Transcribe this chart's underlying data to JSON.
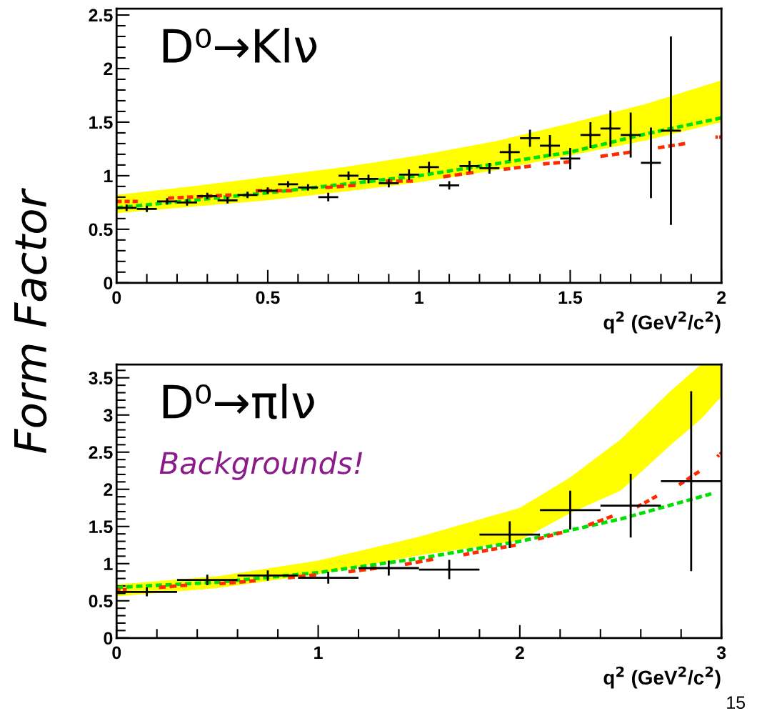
{
  "chart_data": [
    {
      "type": "scatter",
      "title": "D⁰→Klν",
      "ylabel": "Form Factor",
      "xlabel": "q$^{2}$ (GeV$^{2}$/c$^{2}$)",
      "xlim": [
        0,
        2
      ],
      "xticks": [
        0,
        0.5,
        1,
        1.5,
        2
      ],
      "ylim": [
        0,
        2.56
      ],
      "yticks": [
        0,
        0.5,
        1,
        1.5,
        2,
        2.5
      ],
      "grid": false,
      "legend": false,
      "series": [
        {
          "type": "area",
          "color": "#ffff00",
          "x": [
            0,
            0.25,
            0.5,
            0.75,
            1,
            1.25,
            1.5,
            1.75,
            2
          ],
          "values": [
            null,
            null,
            null,
            null,
            null,
            null,
            null,
            null,
            null
          ],
          "lower": [
            0.65,
            0.71,
            0.77,
            0.85,
            0.94,
            1.05,
            1.19,
            1.33,
            1.5
          ],
          "upper": [
            0.82,
            0.9,
            0.99,
            1.08,
            1.19,
            1.32,
            1.49,
            1.67,
            1.89
          ]
        },
        {
          "type": "line",
          "line_style": "dashed",
          "color": "#00e000",
          "x": [
            0,
            0.25,
            0.5,
            0.75,
            1,
            1.25,
            1.5,
            1.75,
            2
          ],
          "values": [
            0.7,
            0.77,
            0.84,
            0.92,
            1.0,
            1.11,
            1.22,
            1.39,
            1.54
          ]
        },
        {
          "type": "line",
          "line_style": "dashed",
          "color": "#ff2a00",
          "x": [
            0,
            0.07
          ],
          "values": [
            0.76,
            0.76
          ]
        },
        {
          "type": "line",
          "line_style": "dashed",
          "color": "#ff2a00",
          "x": [
            0.17,
            0.38
          ],
          "values": [
            0.79,
            0.82
          ]
        },
        {
          "type": "line",
          "line_style": "dashed",
          "color": "#ff2a00",
          "x": [
            0.46,
            0.58
          ],
          "values": [
            0.86,
            0.86
          ]
        },
        {
          "type": "line",
          "line_style": "dashed",
          "color": "#ff2a00",
          "x": [
            0.69,
            0.79
          ],
          "values": [
            0.89,
            0.91
          ]
        },
        {
          "type": "line",
          "line_style": "dashed",
          "color": "#ff2a00",
          "x": [
            0.89,
            0.98
          ],
          "values": [
            0.95,
            0.95
          ]
        },
        {
          "type": "line",
          "line_style": "dashed",
          "color": "#ff2a00",
          "x": [
            1.08,
            1.18
          ],
          "values": [
            0.99,
            1.03
          ]
        },
        {
          "type": "line",
          "line_style": "dashed",
          "color": "#ff2a00",
          "x": [
            1.28,
            1.37
          ],
          "values": [
            1.06,
            1.09
          ]
        },
        {
          "type": "line",
          "line_style": "dashed",
          "color": "#ff2a00",
          "x": [
            1.41,
            1.5
          ],
          "values": [
            1.11,
            1.13
          ]
        },
        {
          "type": "line",
          "line_style": "dashed",
          "color": "#ff2a00",
          "x": [
            1.6,
            1.7
          ],
          "values": [
            1.18,
            1.22
          ]
        },
        {
          "type": "line",
          "line_style": "dashed",
          "color": "#ff2a00",
          "x": [
            1.79,
            1.88
          ],
          "values": [
            1.26,
            1.3
          ]
        },
        {
          "type": "line",
          "line_style": "dashed",
          "color": "#ff2a00",
          "x": [
            1.98,
            2.0
          ],
          "values": [
            1.36,
            1.36
          ]
        },
        {
          "color": "#000000",
          "x": [
            0.033,
            0.1,
            0.167,
            0.233,
            0.3,
            0.367,
            0.433,
            0.5,
            0.567,
            0.633,
            0.7,
            0.767,
            0.833,
            0.9,
            0.967,
            1.033,
            1.1,
            1.167,
            1.233,
            1.3,
            1.367,
            1.433,
            1.5,
            1.567,
            1.633,
            1.7,
            1.767,
            1.833
          ],
          "values": [
            0.7,
            0.69,
            0.76,
            0.75,
            0.81,
            0.77,
            0.82,
            0.86,
            0.92,
            0.89,
            0.8,
            1.0,
            0.97,
            0.93,
            1.01,
            1.08,
            0.91,
            1.09,
            1.07,
            1.22,
            1.35,
            1.28,
            1.16,
            1.38,
            1.44,
            1.38,
            1.12,
            1.42
          ],
          "errors": [
            0.03,
            0.03,
            0.03,
            0.03,
            0.03,
            0.03,
            0.03,
            0.03,
            0.03,
            0.03,
            0.04,
            0.04,
            0.04,
            0.04,
            0.05,
            0.05,
            0.04,
            0.05,
            0.05,
            0.08,
            0.08,
            0.1,
            0.1,
            0.12,
            0.17,
            0.21,
            0.33,
            0.88
          ],
          "xerrors": [
            0.033,
            0.033,
            0.033,
            0.033,
            0.033,
            0.033,
            0.033,
            0.033,
            0.033,
            0.033,
            0.033,
            0.033,
            0.033,
            0.033,
            0.033,
            0.033,
            0.033,
            0.033,
            0.033,
            0.033,
            0.033,
            0.033,
            0.033,
            0.033,
            0.033,
            0.033,
            0.033,
            0.033
          ]
        }
      ]
    },
    {
      "type": "scatter",
      "title": "D⁰→πlν",
      "xlabel": "q$^{2}$ (GeV$^{2}$/c$^{2}$)",
      "annotations": [
        "Backgrounds!",
        "15"
      ],
      "xlim": [
        0,
        3
      ],
      "xticks": [
        0,
        1,
        2,
        3
      ],
      "ylim": [
        0,
        3.68
      ],
      "yticks": [
        0,
        0.5,
        1,
        1.5,
        2,
        2.5,
        3,
        3.5
      ],
      "grid": false,
      "legend": false,
      "series": [
        {
          "type": "area",
          "color": "#ffff00",
          "x": [
            0,
            0.5,
            1,
            1.5,
            2,
            2.25,
            2.5,
            2.75,
            2.9,
            3
          ],
          "values": [
            null,
            null,
            null,
            null,
            null,
            null,
            null,
            null,
            null,
            null
          ],
          "lower": [
            0.56,
            0.67,
            0.86,
            1.11,
            1.31,
            1.68,
            1.98,
            2.6,
            2.95,
            3.25
          ],
          "upper": [
            0.72,
            0.83,
            1.04,
            1.36,
            1.75,
            2.16,
            2.67,
            3.33,
            3.68,
            3.68
          ]
        },
        {
          "type": "line",
          "line_style": "dashed",
          "color": "#00e000",
          "x": [
            0,
            0.5,
            1,
            1.5,
            2,
            2.5,
            2.95
          ],
          "values": [
            0.68,
            0.75,
            0.88,
            1.07,
            1.3,
            1.6,
            1.94
          ]
        },
        {
          "type": "line",
          "line_style": "dashed",
          "color": "#ff2a00",
          "x": [
            0,
            0.05
          ],
          "values": [
            0.65,
            0.65
          ]
        },
        {
          "type": "line",
          "line_style": "dashed",
          "color": "#ff2a00",
          "x": [
            0.21,
            0.35
          ],
          "values": [
            0.68,
            0.71
          ]
        },
        {
          "type": "line",
          "line_style": "dashed",
          "color": "#ff2a00",
          "x": [
            0.51,
            0.69
          ],
          "values": [
            0.73,
            0.77
          ]
        },
        {
          "type": "line",
          "line_style": "dashed",
          "color": "#ff2a00",
          "x": [
            0.85,
            0.99
          ],
          "values": [
            0.81,
            0.85
          ]
        },
        {
          "type": "line",
          "line_style": "dashed",
          "color": "#ff2a00",
          "x": [
            1.15,
            1.29
          ],
          "values": [
            0.89,
            0.94
          ]
        },
        {
          "type": "line",
          "line_style": "dashed",
          "color": "#ff2a00",
          "x": [
            1.43,
            1.57
          ],
          "values": [
            0.99,
            1.06
          ]
        },
        {
          "type": "line",
          "line_style": "dashed",
          "color": "#ff2a00",
          "x": [
            1.72,
            1.98
          ],
          "values": [
            1.12,
            1.25
          ]
        },
        {
          "type": "line",
          "line_style": "dashed",
          "color": "#ff2a00",
          "x": [
            2.09,
            2.21
          ],
          "values": [
            1.33,
            1.42
          ]
        },
        {
          "type": "line",
          "line_style": "dashed",
          "color": "#ff2a00",
          "x": [
            2.34,
            2.46
          ],
          "values": [
            1.52,
            1.64
          ]
        },
        {
          "type": "line",
          "line_style": "dashed",
          "color": "#ff2a00",
          "x": [
            2.58,
            2.68
          ],
          "values": [
            1.76,
            1.91
          ]
        },
        {
          "type": "line",
          "line_style": "dashed",
          "color": "#ff2a00",
          "x": [
            2.79,
            2.89
          ],
          "values": [
            2.06,
            2.24
          ]
        },
        {
          "type": "line",
          "line_style": "dashed",
          "color": "#ff2a00",
          "x": [
            2.98,
            3.0
          ],
          "values": [
            2.44,
            2.49
          ]
        },
        {
          "color": "#000000",
          "x": [
            0.15,
            0.45,
            0.75,
            1.05,
            1.35,
            1.65,
            1.95,
            2.25,
            2.55,
            2.85
          ],
          "values": [
            0.62,
            0.78,
            0.84,
            0.81,
            0.94,
            0.92,
            1.39,
            1.72,
            1.78,
            2.11
          ],
          "errors": [
            0.06,
            0.07,
            0.07,
            0.08,
            0.1,
            0.13,
            0.18,
            0.26,
            0.43,
            1.21
          ],
          "xerrors": [
            0.15,
            0.15,
            0.15,
            0.15,
            0.15,
            0.15,
            0.15,
            0.15,
            0.15,
            0.15
          ]
        }
      ]
    }
  ]
}
